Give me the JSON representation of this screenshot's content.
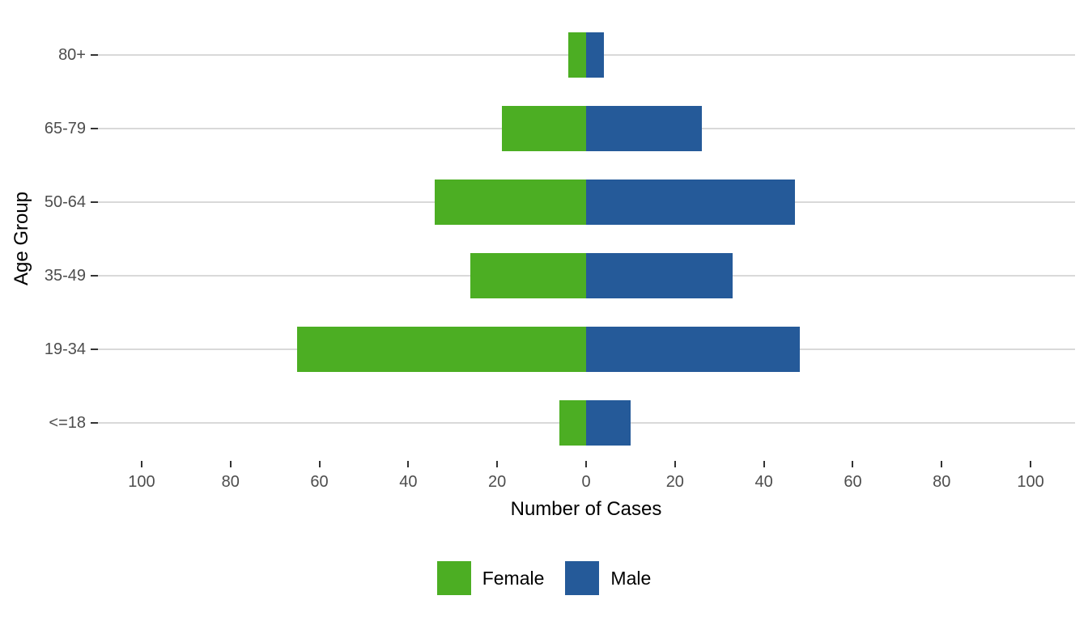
{
  "chart_data": {
    "type": "bar",
    "subtype": "diverging-horizontal-pyramid",
    "title": "",
    "xlabel": "Number of Cases",
    "ylabel": "Age Group",
    "categories": [
      "80+",
      "65-79",
      "50-64",
      "35-49",
      "19-34",
      "<=18"
    ],
    "category_order": "top-to-bottom",
    "series": [
      {
        "name": "Female",
        "side": "left",
        "color": "#4CAE23",
        "values": [
          4,
          19,
          34,
          26,
          65,
          6
        ]
      },
      {
        "name": "Male",
        "side": "right",
        "color": "#255A99",
        "values": [
          4,
          26,
          47,
          33,
          48,
          10
        ]
      }
    ],
    "x_axis": {
      "min": -110,
      "max": 110,
      "ticks": [
        -100,
        -80,
        -60,
        -40,
        -20,
        0,
        20,
        40,
        60,
        80,
        100
      ],
      "tick_labels": [
        "100",
        "80",
        "60",
        "40",
        "20",
        "0",
        "20",
        "40",
        "60",
        "80",
        "100"
      ]
    },
    "grid": "horizontal-major-only",
    "legend_position": "bottom-center"
  },
  "colors": {
    "background": "#FFFFFF",
    "gridline": "#D9D9D9",
    "tick_mark": "#333333",
    "tick_label": "#4D4D4D",
    "axis_title": "#000000"
  }
}
